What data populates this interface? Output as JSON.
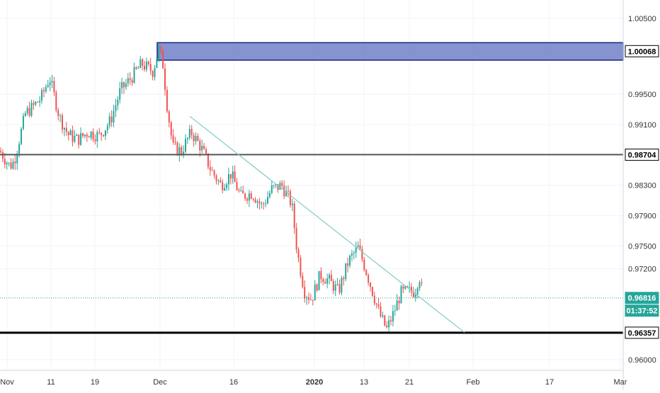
{
  "chart_data": {
    "type": "candlestick",
    "instrument_note": "",
    "y_axis": {
      "side": "right",
      "ticks": [
        1.005,
        0.995,
        0.991,
        0.983,
        0.979,
        0.975,
        0.972,
        0.96
      ],
      "tick_labels": [
        "1.00500",
        "0.99500",
        "0.99100",
        "0.98300",
        "0.97900",
        "0.97500",
        "0.97200",
        "0.96000"
      ],
      "range": [
        0.9575,
        1.0068
      ]
    },
    "x_axis": {
      "tick_labels": [
        "Nov",
        "11",
        "19",
        "Dec",
        "16",
        "2020",
        "13",
        "21",
        "Feb",
        "17",
        "Mar"
      ],
      "bold_labels": [
        "2020"
      ]
    },
    "price_labels": [
      {
        "name": "resistance-zone",
        "text": "1.00068",
        "value": 1.00068,
        "style": "white"
      },
      {
        "name": "support-line",
        "text": "0.98704",
        "value": 0.98704,
        "style": "white"
      },
      {
        "name": "last-price",
        "text": "0.96816",
        "value": 0.96816,
        "style": "teal"
      },
      {
        "name": "countdown",
        "text": "01:37:52",
        "style": "teal"
      },
      {
        "name": "lower-support",
        "text": "0.96357",
        "value": 0.96357,
        "style": "white"
      }
    ],
    "levels": {
      "resistance_zone": [
        0.9995,
        1.0018
      ],
      "horizontal_mid": 0.98704,
      "horizontal_low": 0.96357,
      "last_price": 0.96816
    },
    "trendline": {
      "from": [
        "2019-12-07",
        0.9921
      ],
      "to": [
        "2020-01-28",
        0.9636
      ]
    },
    "colors": {
      "up": "#26a69a",
      "down": "#ef5350",
      "zone_fill": "#7080c8",
      "zone_border": "#1a237e",
      "trendline": "#80cbc4",
      "last_price": "#26a69a",
      "grid": "#f0f3fa"
    },
    "series_anchors": [
      [
        0,
        0.9875
      ],
      [
        14,
        0.9855
      ],
      [
        20,
        0.9862
      ],
      [
        36,
        0.9925
      ],
      [
        45,
        0.9932
      ],
      [
        58,
        0.9945
      ],
      [
        70,
        0.9972
      ],
      [
        84,
        0.992
      ],
      [
        96,
        0.9897
      ],
      [
        110,
        0.989
      ],
      [
        124,
        0.99
      ],
      [
        140,
        0.9895
      ],
      [
        156,
        0.9915
      ],
      [
        170,
        0.9955
      ],
      [
        184,
        0.997
      ],
      [
        200,
        0.999
      ],
      [
        216,
        0.998
      ],
      [
        224,
        1.001
      ],
      [
        230,
        0.999
      ],
      [
        236,
        0.9935
      ],
      [
        244,
        0.988
      ],
      [
        256,
        0.9875
      ],
      [
        270,
        0.99
      ],
      [
        284,
        0.988
      ],
      [
        298,
        0.985
      ],
      [
        312,
        0.983
      ],
      [
        326,
        0.9845
      ],
      [
        340,
        0.9815
      ],
      [
        356,
        0.982
      ],
      [
        370,
        0.9802
      ],
      [
        384,
        0.9825
      ],
      [
        398,
        0.983
      ],
      [
        412,
        0.9805
      ],
      [
        420,
        0.974
      ],
      [
        430,
        0.969
      ],
      [
        440,
        0.968
      ],
      [
        452,
        0.9712
      ],
      [
        464,
        0.9705
      ],
      [
        478,
        0.969
      ],
      [
        492,
        0.973
      ],
      [
        506,
        0.9748
      ],
      [
        516,
        0.972
      ],
      [
        526,
        0.969
      ],
      [
        536,
        0.966
      ],
      [
        546,
        0.964
      ],
      [
        556,
        0.9662
      ],
      [
        566,
        0.9688
      ],
      [
        576,
        0.969
      ],
      [
        586,
        0.969
      ],
      [
        592,
        0.9712
      ],
      [
        598,
        0.9682
      ]
    ]
  }
}
